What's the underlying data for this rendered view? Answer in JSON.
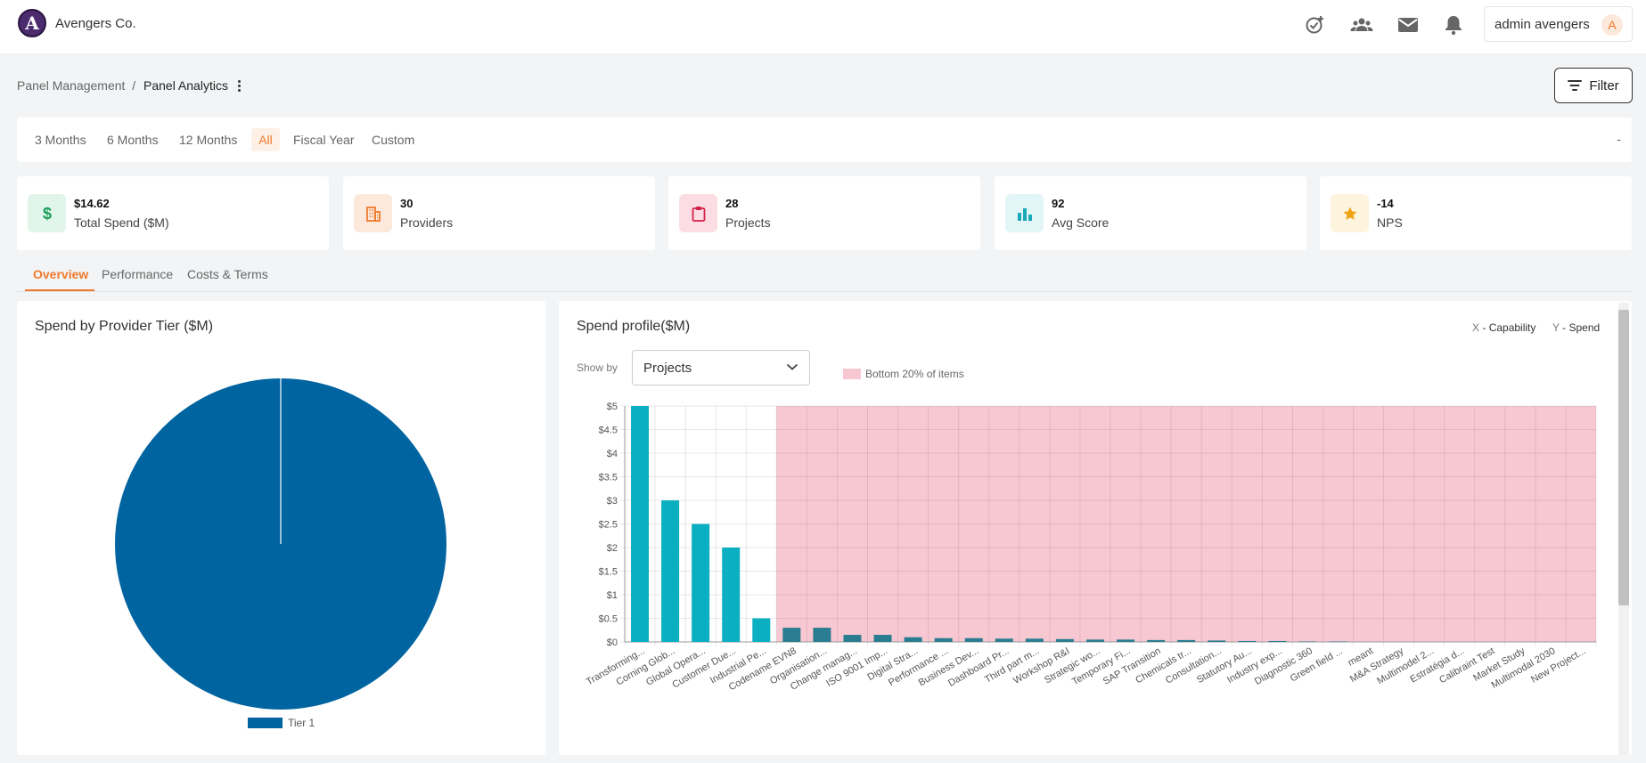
{
  "app": {
    "company": "Avengers Co.",
    "logo_letter": "A",
    "user_name": "admin avengers",
    "user_initial": "A"
  },
  "nav_icons": [
    "task-add-icon",
    "people-icon",
    "mail-icon",
    "bell-icon"
  ],
  "breadcrumb": {
    "parent": "Panel Management",
    "separator": "/",
    "current": "Panel Analytics"
  },
  "filter_button": {
    "label": "Filter"
  },
  "periods": [
    "3 Months",
    "6 Months",
    "12 Months",
    "All",
    "Fiscal Year",
    "Custom"
  ],
  "period_active": "All",
  "period_range": "-",
  "kpis": [
    {
      "value": "$14.62",
      "label": "Total Spend ($M)",
      "icon": "dollar-icon",
      "color": "#1a9e5a",
      "bg": "#e2f5ea"
    },
    {
      "value": "30",
      "label": "Providers",
      "icon": "building-icon",
      "color": "#f07a2b",
      "bg": "#fde9dc"
    },
    {
      "value": "28",
      "label": "Projects",
      "icon": "clipboard-icon",
      "color": "#d3224a",
      "bg": "#fbdde3"
    },
    {
      "value": "92",
      "label": "Avg Score",
      "icon": "bar-chart-icon",
      "color": "#1aa9b9",
      "bg": "#e2f5f7"
    },
    {
      "value": "-14",
      "label": "NPS",
      "icon": "star-icon",
      "color": "#f0a313",
      "bg": "#fdf4de"
    }
  ],
  "section_tabs": [
    "Overview",
    "Performance",
    "Costs & Terms"
  ],
  "section_tab_active": "Overview",
  "tier_panel": {
    "title": "Spend by Provider Tier ($M)"
  },
  "spend_panel": {
    "title": "Spend profile($M)",
    "x_key": "X",
    "x_label": "- Capability",
    "y_key": "Y",
    "y_label": "- Spend",
    "show_by_label": "Show by",
    "show_by_value": "Projects",
    "bottom_band_label": "Bottom 20% of items"
  },
  "chart_data": [
    {
      "type": "pie",
      "title": "Spend by Provider Tier ($M)",
      "labels": [
        "Tier 1"
      ],
      "values": [
        14.62
      ],
      "colors": [
        "#0064a0"
      ],
      "legend": "bottom"
    },
    {
      "type": "bar",
      "title": "Spend profile($M)",
      "categories": [
        "Transforming...",
        "Corning Glob...",
        "Global Opera...",
        "Customer Due...",
        "Industrial Pe...",
        "Codename EVN8",
        "Organisation...",
        "Change manag...",
        "ISO 9001 Imp...",
        "Digital Stra...",
        "Performance ...",
        "Business Dev...",
        "Dashboard Pr...",
        "Third part m...",
        "Workshop R&I",
        "Strategic wo...",
        "Temporary Fi...",
        "SAP Transition",
        "Chemicals tr...",
        "Consultation...",
        "Statutory Au...",
        "Industry exp...",
        "Diagnostic 360",
        "Green field ...",
        "meant",
        "M&A Strategy",
        "Multimodel 2...",
        "Estratégia d...",
        "Calibraint Test",
        "Market Study",
        "Multimodal 2030",
        "New Project..."
      ],
      "values": [
        5.0,
        3.0,
        2.5,
        2.0,
        0.5,
        0.3,
        0.3,
        0.15,
        0.15,
        0.1,
        0.08,
        0.08,
        0.07,
        0.07,
        0.06,
        0.05,
        0.05,
        0.04,
        0.04,
        0.03,
        0.02,
        0.02,
        0.01,
        0.01,
        0,
        0,
        0,
        0,
        0,
        0,
        0,
        0
      ],
      "highlight_count": 5,
      "colors": {
        "top": "#0aafc2",
        "bottom": "#2a7d91",
        "band": "#f8c8d2"
      },
      "y_ticks": [
        "$0",
        "$0.5",
        "$1",
        "$1.5",
        "$2",
        "$2.5",
        "$3",
        "$3.5",
        "$4",
        "$4.5",
        "$5"
      ],
      "ylim": [
        0,
        5
      ],
      "grid": true
    }
  ]
}
